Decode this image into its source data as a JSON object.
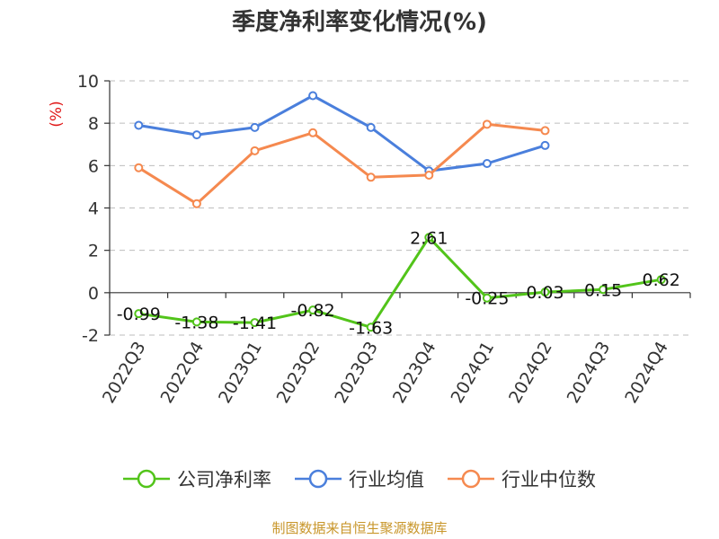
{
  "chart_data": {
    "type": "line",
    "title": "季度净利率变化情况(%)",
    "ylabel": "(%)",
    "categories": [
      "2022Q3",
      "2022Q4",
      "2023Q1",
      "2023Q2",
      "2023Q3",
      "2023Q4",
      "2024Q1",
      "2024Q2",
      "2024Q3",
      "2024Q4"
    ],
    "ylim": [
      -2,
      10
    ],
    "yticks": [
      -2,
      0,
      2,
      4,
      6,
      8,
      10
    ],
    "grid": true,
    "legend_position": "bottom",
    "series": [
      {
        "name": "公司净利率",
        "color": "#52c41a",
        "values": [
          -0.99,
          -1.38,
          -1.41,
          -0.82,
          -1.63,
          2.61,
          -0.25,
          0.03,
          0.15,
          0.62
        ],
        "labels": [
          "-0.99",
          "-1.38",
          "-1.41",
          "-0.82",
          "-1.63",
          "2.61",
          "-0.25",
          "0.03",
          "0.15",
          "0.62"
        ]
      },
      {
        "name": "行业均值",
        "color": "#4a7fdc",
        "values": [
          7.9,
          7.45,
          7.8,
          9.3,
          7.8,
          5.75,
          6.1,
          6.95,
          null,
          null
        ]
      },
      {
        "name": "行业中位数",
        "color": "#f5894f",
        "values": [
          5.9,
          4.2,
          6.7,
          7.55,
          5.45,
          5.55,
          7.95,
          7.65,
          null,
          null
        ]
      }
    ]
  },
  "source": "制图数据来自恒生聚源数据库"
}
